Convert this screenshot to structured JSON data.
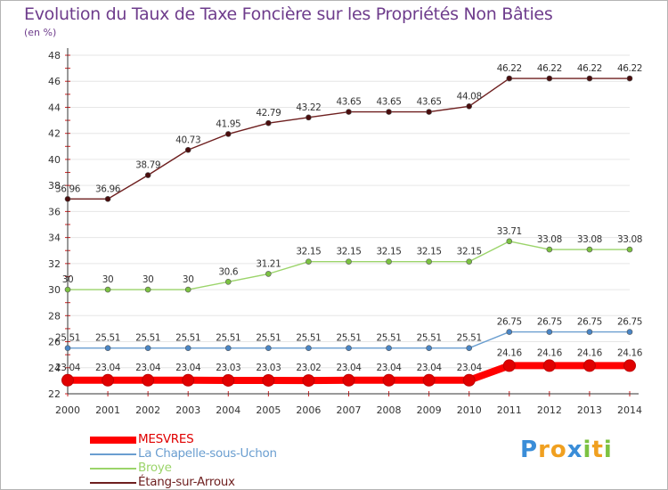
{
  "colors": {
    "title": "#6e3c8c",
    "axis": "#333333",
    "tick": "#d02020",
    "grid": "#e6e6e6"
  },
  "chart_data": {
    "type": "line",
    "title": "Evolution du Taux de Taxe Foncière sur les Propriétés Non Bâties",
    "ylabel": "(en %)",
    "xlabel": "",
    "ylim": [
      22,
      48
    ],
    "yticks": [
      22,
      24,
      26,
      28,
      30,
      32,
      34,
      36,
      38,
      40,
      42,
      44,
      46,
      48
    ],
    "x": [
      "2000",
      "2001",
      "2002",
      "2003",
      "2004",
      "2005",
      "2006",
      "2007",
      "2008",
      "2009",
      "2010",
      "2011",
      "2012",
      "2013",
      "2014"
    ],
    "series": [
      {
        "name": "Étang-sur-Arroux",
        "color": "#6e1f1f",
        "point_color": "#4a0d0d",
        "values": [
          36.96,
          36.96,
          38.79,
          40.73,
          41.95,
          42.79,
          43.22,
          43.65,
          43.65,
          43.65,
          44.08,
          46.22,
          46.22,
          46.22,
          46.22
        ],
        "labels": [
          "36.96",
          "36.96",
          "38.79",
          "40.73",
          "41.95",
          "42.79",
          "43.22",
          "43.65",
          "43.65",
          "43.65",
          "44.08",
          "46.22",
          "46.22",
          "46.22",
          "46.22"
        ]
      },
      {
        "name": "Broye",
        "color": "#9bd46a",
        "point_color": "#7cc242",
        "values": [
          30,
          30,
          30,
          30,
          30.6,
          31.21,
          32.15,
          32.15,
          32.15,
          32.15,
          32.15,
          33.71,
          33.08,
          33.08,
          33.08
        ],
        "labels": [
          "30",
          "30",
          "30",
          "30",
          "30.6",
          "31.21",
          "32.15",
          "32.15",
          "32.15",
          "32.15",
          "32.15",
          "33.71",
          "33.08",
          "33.08",
          "33.08"
        ]
      },
      {
        "name": "La Chapelle-sous-Uchon",
        "color": "#6a9ed0",
        "point_color": "#4a86c6",
        "values": [
          25.51,
          25.51,
          25.51,
          25.51,
          25.51,
          25.51,
          25.51,
          25.51,
          25.51,
          25.51,
          25.51,
          26.75,
          26.75,
          26.75,
          26.75
        ],
        "labels": [
          "25.51",
          "25.51",
          "25.51",
          "25.51",
          "25.51",
          "25.51",
          "25.51",
          "25.51",
          "25.51",
          "25.51",
          "25.51",
          "26.75",
          "26.75",
          "26.75",
          "26.75"
        ]
      },
      {
        "name": "MESVRES",
        "color": "#ff0000",
        "point_color": "#e00000",
        "values": [
          23.04,
          23.04,
          23.04,
          23.04,
          23.03,
          23.03,
          23.02,
          23.04,
          23.04,
          23.04,
          23.04,
          24.16,
          24.16,
          24.16,
          24.16
        ],
        "labels": [
          "23.04",
          "23.04",
          "23.04",
          "23.04",
          "23.03",
          "23.03",
          "23.02",
          "23.04",
          "23.04",
          "23.04",
          "23.04",
          "24.16",
          "24.16",
          "24.16",
          "24.16"
        ]
      }
    ],
    "legend_order": [
      "MESVRES",
      "La Chapelle-sous-Uchon",
      "Broye",
      "Étang-sur-Arroux"
    ],
    "legend_position": "bottom-left"
  },
  "logo": {
    "letters": [
      "P",
      "r",
      "o",
      "x",
      "i",
      "t",
      "i"
    ],
    "colors": [
      "#3a8dd8",
      "#f0a020",
      "#f0a020",
      "#3a8dd8",
      "#7cc242",
      "#f0a020",
      "#7cc242"
    ]
  }
}
